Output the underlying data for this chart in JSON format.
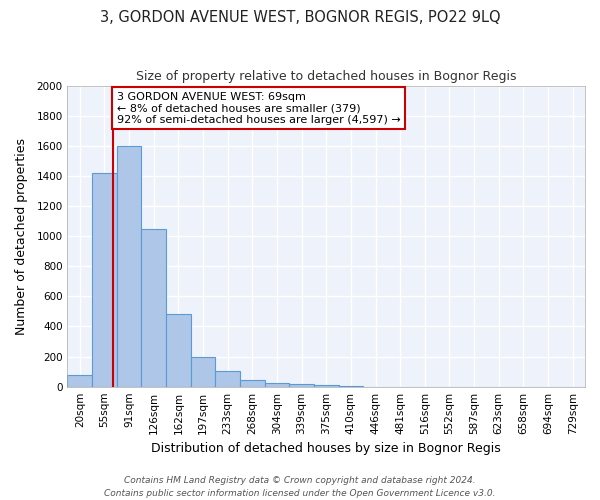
{
  "title": "3, GORDON AVENUE WEST, BOGNOR REGIS, PO22 9LQ",
  "subtitle": "Size of property relative to detached houses in Bognor Regis",
  "xlabel": "Distribution of detached houses by size in Bognor Regis",
  "ylabel": "Number of detached properties",
  "categories": [
    "20sqm",
    "55sqm",
    "91sqm",
    "126sqm",
    "162sqm",
    "197sqm",
    "233sqm",
    "268sqm",
    "304sqm",
    "339sqm",
    "375sqm",
    "410sqm",
    "446sqm",
    "481sqm",
    "516sqm",
    "552sqm",
    "587sqm",
    "623sqm",
    "658sqm",
    "694sqm",
    "729sqm"
  ],
  "values": [
    80,
    1420,
    1600,
    1050,
    480,
    200,
    105,
    45,
    25,
    15,
    8,
    3,
    0,
    0,
    0,
    0,
    0,
    0,
    0,
    0,
    0
  ],
  "bar_color": "#aec6e8",
  "bar_edge_color": "#5b9bd5",
  "red_line_index": 1.35,
  "property_line_label": "3 GORDON AVENUE WEST: 69sqm",
  "annotation_line1": "← 8% of detached houses are smaller (379)",
  "annotation_line2": "92% of semi-detached houses are larger (4,597) →",
  "annotation_box_color": "#ffffff",
  "annotation_box_edge_color": "#cc0000",
  "red_line_color": "#cc0000",
  "ylim": [
    0,
    2000
  ],
  "yticks": [
    0,
    200,
    400,
    600,
    800,
    1000,
    1200,
    1400,
    1600,
    1800,
    2000
  ],
  "background_color": "#eef2fb",
  "grid_color": "#ffffff",
  "footer1": "Contains HM Land Registry data © Crown copyright and database right 2024.",
  "footer2": "Contains public sector information licensed under the Open Government Licence v3.0.",
  "title_fontsize": 10.5,
  "subtitle_fontsize": 9,
  "axis_label_fontsize": 9,
  "tick_fontsize": 7.5,
  "footer_fontsize": 6.5,
  "annotation_fontsize": 8
}
